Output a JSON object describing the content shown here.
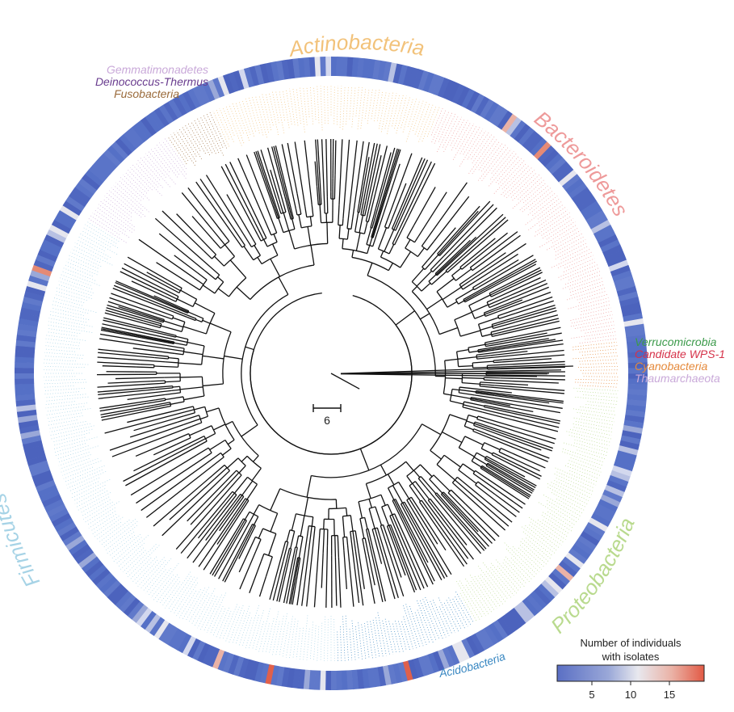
{
  "phyla_curved": {
    "actinobacteria": {
      "label": "Actinobacteria",
      "color": "#f2c27a"
    },
    "bacteroidetes": {
      "label": "Bacteroidetes",
      "color": "#ee9a9a"
    },
    "proteobacteria": {
      "label": "Proteobacteria",
      "color": "#b9da8e"
    },
    "firmicutes": {
      "label": "Firmicutes",
      "color": "#a6d3e6"
    }
  },
  "phyla_small": {
    "gemmatimonadetes": {
      "label": "Gemmatimonadetes",
      "color": "#c9a9d9"
    },
    "deinococcus": {
      "label": "Deinococcus-Thermus",
      "color": "#6a3d8f"
    },
    "fusobacteria": {
      "label": "Fusobacteria",
      "color": "#9a6a3a"
    },
    "verrucomicrobia": {
      "label": "Verrucomicrobia",
      "color": "#3b9a4a"
    },
    "wps1": {
      "label": "Candidate WPS-1",
      "color": "#d6334a"
    },
    "cyanobacteria": {
      "label": "Cyanobacteria",
      "color": "#e5893a"
    },
    "thaumarchaeota": {
      "label": "Thaumarchaeota",
      "color": "#c9a9d9"
    },
    "acidobacteria": {
      "label": "Acidobacteria",
      "color": "#3a88c2"
    }
  },
  "scale_bar": {
    "label": "6"
  },
  "legend": {
    "title_line1": "Number of individuals",
    "title_line2": "with isolates",
    "ticks": [
      "5",
      "10",
      "15"
    ],
    "colors": [
      "#5a6fc4",
      "#9aa8d8",
      "#e8e8ee",
      "#eab2a6",
      "#e25a45"
    ]
  }
}
